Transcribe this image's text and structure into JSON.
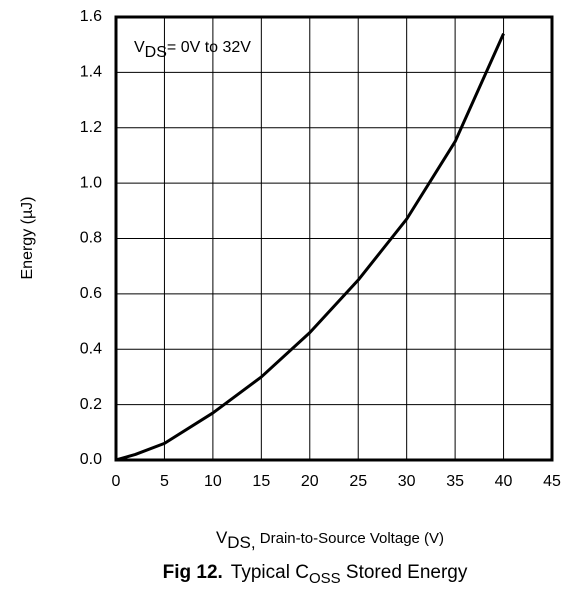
{
  "chart_data": {
    "type": "line",
    "annotation": {
      "main": "V",
      "sub": "DS",
      "rest": "= 0V to 32V"
    },
    "xlabel": {
      "main": "V",
      "sub": "DS,",
      "rest": " Drain-to-Source Voltage (V)"
    },
    "ylabel": "Energy (µJ)",
    "caption": {
      "fig": "Fig 12.",
      "main": "Typical C",
      "sub": "OSS",
      "rest": " Stored Energy"
    },
    "x": [
      0,
      2,
      5,
      10,
      15,
      20,
      25,
      30,
      35,
      40
    ],
    "values": [
      0,
      0.02,
      0.06,
      0.17,
      0.3,
      0.46,
      0.65,
      0.87,
      1.15,
      1.54
    ],
    "color": "#000000",
    "xlim": [
      0,
      45
    ],
    "xticks": [
      0,
      5,
      10,
      15,
      20,
      25,
      30,
      35,
      40,
      45
    ],
    "ylim": [
      0,
      1.6
    ],
    "yticks": [
      {
        "value": 0,
        "label": "0.0"
      },
      {
        "value": 0.2,
        "label": "0.2"
      },
      {
        "value": 0.4,
        "label": "0.4"
      },
      {
        "value": 0.6,
        "label": "0.6"
      },
      {
        "value": 0.8,
        "label": "0.8"
      },
      {
        "value": 1.0,
        "label": "1.0"
      },
      {
        "value": 1.2,
        "label": "1.2"
      },
      {
        "value": 1.4,
        "label": "1.4"
      },
      {
        "value": 1.6,
        "label": "1.6"
      }
    ],
    "grid": true
  }
}
